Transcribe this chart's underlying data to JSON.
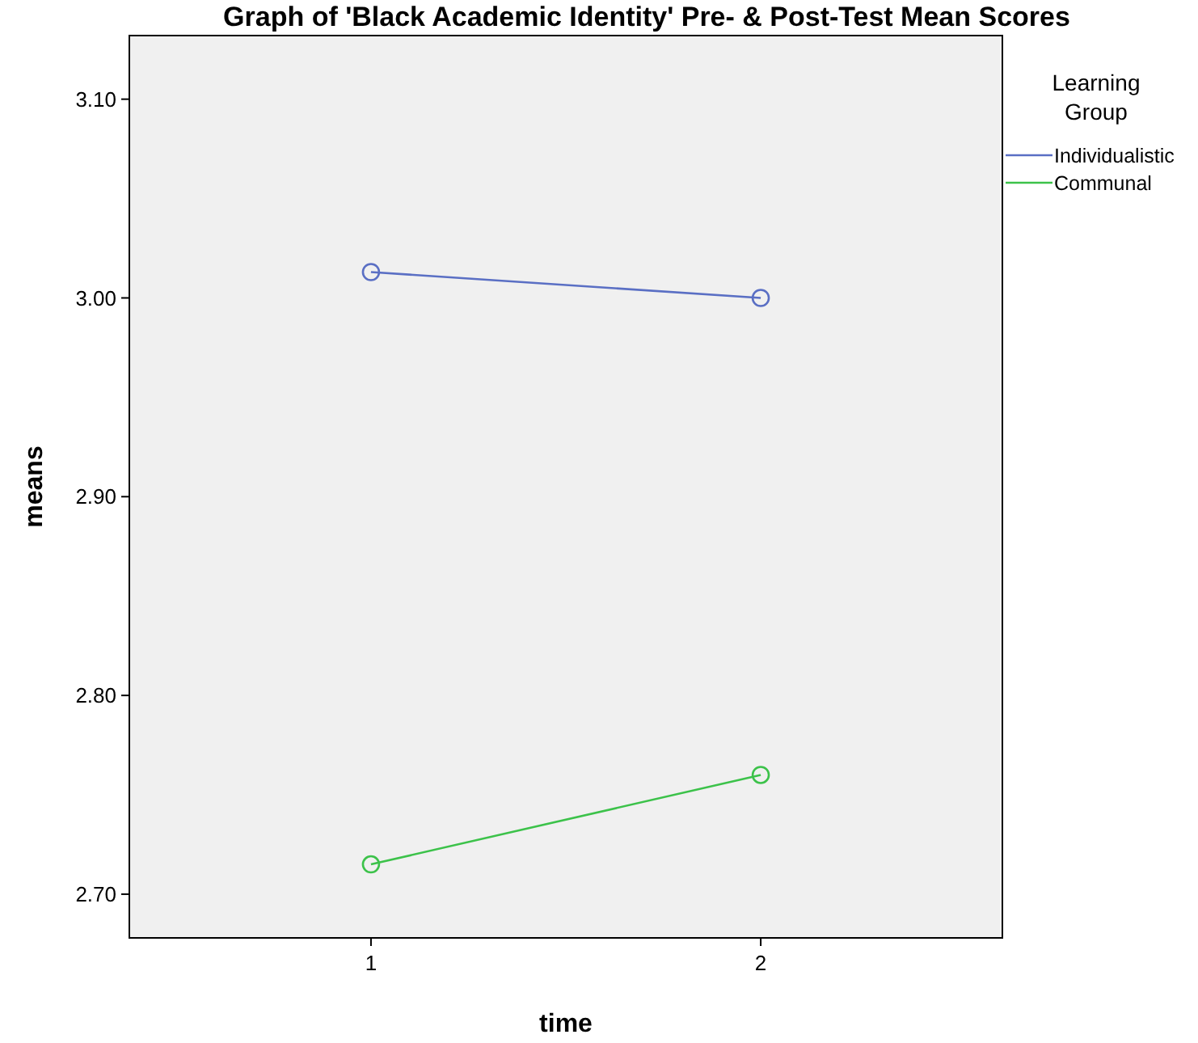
{
  "chart_data": {
    "type": "line",
    "title": "Graph of 'Black Academic Identity' Pre- & Post-Test Mean Scores",
    "xlabel": "time",
    "ylabel": "means",
    "legend_title": "Learning Group",
    "x": [
      1,
      2
    ],
    "xlim": [
      0.38,
      2.62
    ],
    "xticks": [
      1,
      2
    ],
    "ylim": [
      2.678,
      3.132
    ],
    "yticks": [
      {
        "value": 2.7,
        "label": "2.70"
      },
      {
        "value": 2.8,
        "label": "2.80"
      },
      {
        "value": 2.9,
        "label": "2.90"
      },
      {
        "value": 3.0,
        "label": "3.00"
      },
      {
        "value": 3.1,
        "label": "3.10"
      }
    ],
    "series": [
      {
        "name": "Individualistic",
        "color": "#5a6fc4",
        "values": [
          3.013,
          3.0
        ]
      },
      {
        "name": "Communal",
        "color": "#3cc24a",
        "values": [
          2.715,
          2.76
        ]
      }
    ],
    "marker": "circle",
    "grid": false,
    "legend": "top right"
  }
}
